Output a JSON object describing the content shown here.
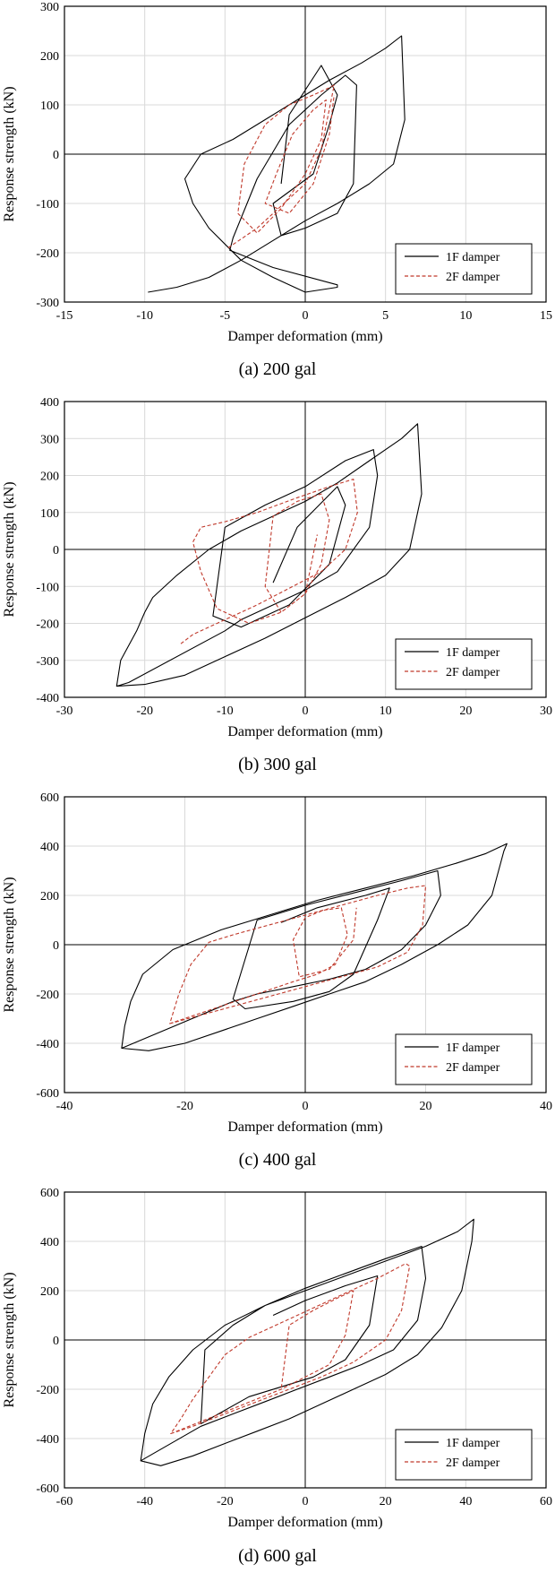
{
  "chart_data": [
    {
      "type": "line",
      "caption": "(a) 200 gal",
      "xlabel": "Damper deformation (mm)",
      "ylabel": "Response strength (kN)",
      "xlim": [
        -15,
        15
      ],
      "ylim": [
        -300,
        300
      ],
      "xticks": [
        -15,
        -10,
        -5,
        0,
        5,
        10,
        15
      ],
      "yticks": [
        -300,
        -200,
        -100,
        0,
        100,
        200,
        300
      ],
      "grid": true,
      "legend_position": "bottom-right",
      "series": [
        {
          "name": "1F damper",
          "color": "#000000",
          "dash": "solid",
          "x": [
            -9.8,
            -8.0,
            -6.0,
            -4.0,
            -2.0,
            0.0,
            2.0,
            4.0,
            5.5,
            6.2,
            6.0,
            5.0,
            3.5,
            1.5,
            -0.5,
            -2.5,
            -4.5,
            -6.5,
            -7.5,
            -7.0,
            -6.0,
            -4.0,
            -2.0,
            0.0,
            2.0,
            2.0,
            -2.0,
            -4.7,
            -4.5,
            -3.0,
            -1.0,
            1.0,
            2.5,
            3.2,
            3.0,
            2.0,
            0.0,
            -1.5,
            -2.0,
            0.5,
            1.5,
            2.0,
            1.0,
            -1.0,
            -1.5
          ],
          "y": [
            -280,
            -270,
            -250,
            -215,
            -175,
            -135,
            -100,
            -60,
            -20,
            70,
            240,
            215,
            185,
            150,
            110,
            70,
            30,
            0,
            -50,
            -100,
            -150,
            -215,
            -250,
            -280,
            -270,
            -265,
            -230,
            -195,
            -170,
            -50,
            60,
            120,
            160,
            140,
            -60,
            -120,
            -150,
            -165,
            -100,
            -40,
            60,
            120,
            180,
            80,
            -60
          ]
        },
        {
          "name": "2F damper",
          "color": "#c0392b",
          "dash": "dashed",
          "x": [
            -4.8,
            -3.0,
            -1.5,
            0.0,
            1.0,
            1.8,
            1.5,
            0.5,
            -1.0,
            -2.5,
            -3.8,
            -4.2,
            -3.0,
            -1.5,
            0.0,
            1.0,
            1.3,
            0.5,
            -0.8,
            -1.8,
            -2.5,
            -1.0,
            0.5,
            1.5,
            1.8
          ],
          "y": [
            -190,
            -150,
            -105,
            -60,
            10,
            140,
            135,
            120,
            100,
            60,
            -20,
            -120,
            -160,
            -110,
            -40,
            30,
            110,
            90,
            40,
            -40,
            -100,
            -120,
            -60,
            40,
            120
          ]
        }
      ]
    },
    {
      "type": "line",
      "caption": "(b) 300 gal",
      "xlabel": "Damper deformation (mm)",
      "ylabel": "Response strength (kN)",
      "xlim": [
        -30,
        30
      ],
      "ylim": [
        -400,
        400
      ],
      "xticks": [
        -30,
        -20,
        -10,
        0,
        10,
        20,
        30
      ],
      "yticks": [
        -400,
        -300,
        -200,
        -100,
        0,
        100,
        200,
        300,
        400
      ],
      "grid": true,
      "legend_position": "bottom-right",
      "series": [
        {
          "name": "1F damper",
          "color": "#000000",
          "dash": "solid",
          "x": [
            -23.5,
            -20.0,
            -15.0,
            -10.0,
            -5.0,
            0.0,
            5.0,
            10.0,
            13.0,
            14.5,
            14.0,
            12.0,
            8.0,
            4.0,
            0.0,
            -4.0,
            -8.0,
            -12.0,
            -16.0,
            -19.0,
            -20.0,
            -21.0,
            -23.0,
            -23.5,
            -22.0,
            -10.0,
            -8.0,
            -4.0,
            0.0,
            4.0,
            8.0,
            9.0,
            8.5,
            5.0,
            0.0,
            -5.0,
            -10.0,
            -11.5,
            -8.0,
            -2.0,
            3.0,
            5.0,
            4.0,
            -1.0,
            -4.0
          ],
          "y": [
            -370,
            -365,
            -340,
            -290,
            -240,
            -185,
            -130,
            -70,
            0,
            150,
            340,
            300,
            240,
            180,
            130,
            90,
            50,
            0,
            -70,
            -130,
            -170,
            -220,
            -300,
            -370,
            -360,
            -220,
            -190,
            -150,
            -110,
            -60,
            60,
            200,
            270,
            240,
            170,
            120,
            60,
            -180,
            -210,
            -150,
            -40,
            120,
            170,
            60,
            -90
          ]
        },
        {
          "name": "2F damper",
          "color": "#c0392b",
          "dash": "dashed",
          "x": [
            -15.5,
            -14.0,
            -10.0,
            -6.0,
            -2.0,
            2.0,
            5.0,
            6.5,
            6.0,
            3.0,
            -1.0,
            -6.0,
            -10.0,
            -13.0,
            -14.0,
            -13.0,
            -11.0,
            -7.0,
            -3.0,
            0.0,
            2.0,
            3.0,
            2.0,
            -1.0,
            -4.0,
            -5.0,
            -3.0,
            0.0,
            1.5
          ],
          "y": [
            -255,
            -230,
            -190,
            -150,
            -105,
            -60,
            0,
            100,
            190,
            170,
            140,
            100,
            75,
            60,
            20,
            -60,
            -160,
            -200,
            -170,
            -120,
            -40,
            80,
            150,
            130,
            90,
            -100,
            -170,
            -120,
            40
          ]
        }
      ]
    },
    {
      "type": "line",
      "caption": "(c) 400 gal",
      "xlabel": "Damper deformation (mm)",
      "ylabel": "Response strength (kN)",
      "xlim": [
        -40,
        40
      ],
      "ylim": [
        -600,
        600
      ],
      "xticks": [
        -40,
        -20,
        0,
        20,
        40
      ],
      "yticks": [
        -600,
        -400,
        -200,
        0,
        200,
        400,
        600
      ],
      "grid": true,
      "legend_position": "bottom-right",
      "series": [
        {
          "name": "1F damper",
          "color": "#000000",
          "dash": "solid",
          "x": [
            -30.5,
            -26.0,
            -20.0,
            -14.0,
            -8.0,
            -2.0,
            4.0,
            10.0,
            16.0,
            22.0,
            27.0,
            31.0,
            33.0,
            33.5,
            30.0,
            25.0,
            18.0,
            10.0,
            2.0,
            -6.0,
            -14.0,
            -22.0,
            -27.0,
            -29.0,
            -30.0,
            -30.5,
            -12.0,
            -8.0,
            -2.0,
            4.0,
            10.0,
            16.0,
            20.0,
            22.5,
            22.0,
            16.0,
            8.0,
            0.0,
            -8.0,
            -12.0,
            -10.0,
            -2.0,
            4.0,
            8.0,
            12.0,
            14.0,
            10.0,
            2.0,
            -4.0
          ],
          "y": [
            -420,
            -430,
            -400,
            -350,
            -300,
            -250,
            -200,
            -150,
            -80,
            0,
            80,
            200,
            380,
            410,
            370,
            330,
            280,
            230,
            180,
            120,
            60,
            -20,
            -120,
            -230,
            -330,
            -420,
            -230,
            -200,
            -170,
            -140,
            -100,
            -20,
            80,
            200,
            300,
            260,
            210,
            160,
            100,
            -220,
            -260,
            -230,
            -190,
            -120,
            100,
            230,
            200,
            150,
            90
          ]
        },
        {
          "name": "2F damper",
          "color": "#c0392b",
          "dash": "dashed",
          "x": [
            -22.5,
            -18.0,
            -12.0,
            -6.0,
            0.0,
            6.0,
            12.0,
            17.0,
            19.5,
            20.0,
            17.0,
            12.0,
            6.0,
            0.0,
            -6.0,
            -12.0,
            -16.0,
            -19.0,
            -21.0,
            -22.5,
            -2.0,
            2.0,
            5.0,
            7.0,
            6.0,
            3.0,
            0.0,
            -2.0,
            -1.0,
            4.0,
            8.0,
            8.5
          ],
          "y": [
            -320,
            -290,
            -250,
            -210,
            -170,
            -130,
            -90,
            -30,
            80,
            240,
            230,
            200,
            160,
            120,
            80,
            40,
            10,
            -80,
            -200,
            -320,
            -150,
            -120,
            -80,
            40,
            150,
            140,
            110,
            20,
            -130,
            -100,
            20,
            150
          ]
        }
      ]
    },
    {
      "type": "line",
      "caption": "(d) 600 gal",
      "xlabel": "Damper deformation (mm)",
      "ylabel": "Response strength (kN)",
      "xlim": [
        -60,
        60
      ],
      "ylim": [
        -600,
        600
      ],
      "xticks": [
        -60,
        -40,
        -20,
        0,
        20,
        40,
        60
      ],
      "yticks": [
        -600,
        -400,
        -200,
        0,
        200,
        400,
        600
      ],
      "grid": true,
      "legend_position": "bottom-right",
      "series": [
        {
          "name": "1F damper",
          "color": "#000000",
          "dash": "solid",
          "x": [
            -41.0,
            -36.0,
            -28.0,
            -20.0,
            -12.0,
            -4.0,
            4.0,
            12.0,
            20.0,
            28.0,
            34.0,
            39.0,
            41.5,
            42.0,
            38.0,
            30.0,
            20.0,
            10.0,
            0.0,
            -10.0,
            -20.0,
            -28.0,
            -34.0,
            -38.0,
            -40.0,
            -41.0,
            -26.0,
            -18.0,
            -10.0,
            -2.0,
            6.0,
            14.0,
            22.0,
            28.0,
            30.0,
            29.0,
            20.0,
            10.0,
            0.0,
            -10.0,
            -18.0,
            -25.0,
            -26.0,
            -14.0,
            -6.0,
            2.0,
            10.0,
            16.0,
            18.0,
            10.0,
            0.0,
            -8.0
          ],
          "y": [
            -490,
            -510,
            -470,
            -420,
            -370,
            -320,
            -260,
            -200,
            -140,
            -60,
            50,
            200,
            400,
            490,
            440,
            380,
            320,
            260,
            200,
            140,
            60,
            -40,
            -150,
            -260,
            -380,
            -490,
            -350,
            -300,
            -250,
            -200,
            -150,
            -100,
            -40,
            80,
            250,
            380,
            330,
            270,
            210,
            140,
            60,
            -40,
            -340,
            -230,
            -190,
            -150,
            -80,
            60,
            260,
            220,
            160,
            100
          ]
        },
        {
          "name": "2F damper",
          "color": "#c0392b",
          "dash": "dashed",
          "x": [
            -33.5,
            -28.0,
            -20.0,
            -12.0,
            -4.0,
            4.0,
            12.0,
            20.0,
            24.0,
            26.0,
            25.0,
            18.0,
            10.0,
            2.0,
            -6.0,
            -14.0,
            -20.0,
            -24.0,
            -28.0,
            -31.0,
            -33.5,
            -6.0,
            0.0,
            6.0,
            10.0,
            12.0,
            8.0,
            2.0,
            -4.0,
            -6.0
          ],
          "y": [
            -380,
            -350,
            -300,
            -250,
            -200,
            -150,
            -90,
            0,
            120,
            300,
            310,
            250,
            190,
            130,
            70,
            10,
            -60,
            -150,
            -240,
            -320,
            -380,
            -200,
            -150,
            -100,
            20,
            200,
            170,
            120,
            60,
            -200
          ]
        }
      ]
    }
  ]
}
